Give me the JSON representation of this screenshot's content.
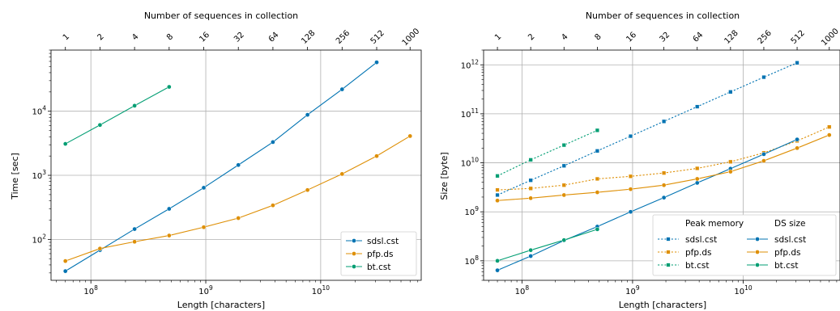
{
  "chart_data": [
    {
      "type": "line",
      "xscale": "log",
      "yscale": "log",
      "xlabel": "Length [characters]",
      "ylabel": "Time [sec]",
      "top_xlabel": "Number of sequences in collection",
      "xlim": [
        45000000,
        75000000000
      ],
      "ylim": [
        23,
        90000
      ],
      "grid": true,
      "legend": "lower right",
      "x_tick_labels": [
        "10^8",
        "10^9",
        "10^10"
      ],
      "y_tick_labels": [
        "10^2",
        "10^3",
        "10^4"
      ],
      "top_tick_labels": [
        "1",
        "2",
        "4",
        "8",
        "16",
        "32",
        "64",
        "128",
        "256",
        "512",
        "1000"
      ],
      "series": [
        {
          "name": "sdsl.cst",
          "color": "#0173b2",
          "style": "solid",
          "x": [
            60000000,
            120000000,
            240000000,
            480000000,
            960000000,
            1920000000,
            3840000000,
            7680000000,
            15360000000,
            30720000000
          ],
          "y": [
            32,
            68,
            145,
            300,
            640,
            1450,
            3300,
            8800,
            22000,
            58000
          ]
        },
        {
          "name": "pfp.ds",
          "color": "#de8f05",
          "style": "solid",
          "x": [
            60000000,
            120000000,
            240000000,
            480000000,
            960000000,
            1920000000,
            3840000000,
            7680000000,
            15360000000,
            30720000000,
            60000000000
          ],
          "y": [
            46,
            72,
            92,
            115,
            155,
            215,
            340,
            590,
            1050,
            2000,
            4100
          ]
        },
        {
          "name": "bt.cst",
          "color": "#029e73",
          "style": "solid",
          "x": [
            60000000,
            120000000,
            240000000,
            480000000
          ],
          "y": [
            3100,
            6100,
            12200,
            24000
          ]
        }
      ]
    },
    {
      "type": "line",
      "xscale": "log",
      "yscale": "log",
      "xlabel": "Length [characters]",
      "ylabel": "Size [byte]",
      "top_xlabel": "Number of sequences in collection",
      "xlim": [
        45000000,
        75000000000
      ],
      "ylim": [
        40000000,
        2000000000000
      ],
      "grid": true,
      "legend": "lower right",
      "x_tick_labels": [
        "10^8",
        "10^9",
        "10^10"
      ],
      "y_tick_labels": [
        "10^8",
        "10^9",
        "10^10",
        "10^11",
        "10^12"
      ],
      "top_tick_labels": [
        "1",
        "2",
        "4",
        "8",
        "16",
        "32",
        "64",
        "128",
        "256",
        "512",
        "1000"
      ],
      "legend_groups": [
        "Peak memory",
        "DS size"
      ],
      "series": [
        {
          "name": "sdsl.cst",
          "group": "Peak memory",
          "color": "#0173b2",
          "style": "dotted",
          "x": [
            60000000,
            120000000,
            240000000,
            480000000,
            960000000,
            1920000000,
            3840000000,
            7680000000,
            15360000000,
            30720000000
          ],
          "y": [
            2200000000,
            4400000000,
            8700000000,
            17500000000,
            35000000000,
            70000000000,
            140000000000,
            280000000000,
            560000000000,
            1100000000000
          ]
        },
        {
          "name": "pfp.ds",
          "group": "Peak memory",
          "color": "#de8f05",
          "style": "dotted",
          "x": [
            60000000,
            120000000,
            240000000,
            480000000,
            960000000,
            1920000000,
            3840000000,
            7680000000,
            15360000000,
            30720000000,
            60000000000
          ],
          "y": [
            2800000000,
            3000000000,
            3500000000,
            4700000000,
            5300000000,
            6200000000,
            7700000000,
            10500000000,
            16000000000,
            28000000000,
            54000000000
          ]
        },
        {
          "name": "bt.cst",
          "group": "Peak memory",
          "color": "#029e73",
          "style": "dotted",
          "x": [
            60000000,
            120000000,
            240000000,
            480000000
          ],
          "y": [
            5400000000,
            11500000000,
            23000000000,
            46000000000
          ]
        },
        {
          "name": "sdsl.cst",
          "group": "DS size",
          "color": "#0173b2",
          "style": "solid",
          "x": [
            60000000,
            120000000,
            240000000,
            480000000,
            960000000,
            1920000000,
            3840000000,
            7680000000,
            15360000000,
            30720000000
          ],
          "y": [
            64000000,
            125000000,
            260000000,
            500000000,
            1000000000,
            1950000000,
            3900000000,
            7600000000,
            15000000000,
            30000000000
          ]
        },
        {
          "name": "pfp.ds",
          "group": "DS size",
          "color": "#de8f05",
          "style": "solid",
          "x": [
            60000000,
            120000000,
            240000000,
            480000000,
            960000000,
            1920000000,
            3840000000,
            7680000000,
            15360000000,
            30720000000,
            60000000000
          ],
          "y": [
            1700000000,
            1900000000,
            2200000000,
            2500000000,
            2900000000,
            3500000000,
            4700000000,
            6600000000,
            11000000000,
            20000000000,
            37000000000
          ]
        },
        {
          "name": "bt.cst",
          "group": "DS size",
          "color": "#029e73",
          "style": "solid",
          "x": [
            60000000,
            120000000,
            240000000,
            480000000
          ],
          "y": [
            100000000,
            165000000,
            265000000,
            440000000
          ]
        }
      ]
    }
  ]
}
